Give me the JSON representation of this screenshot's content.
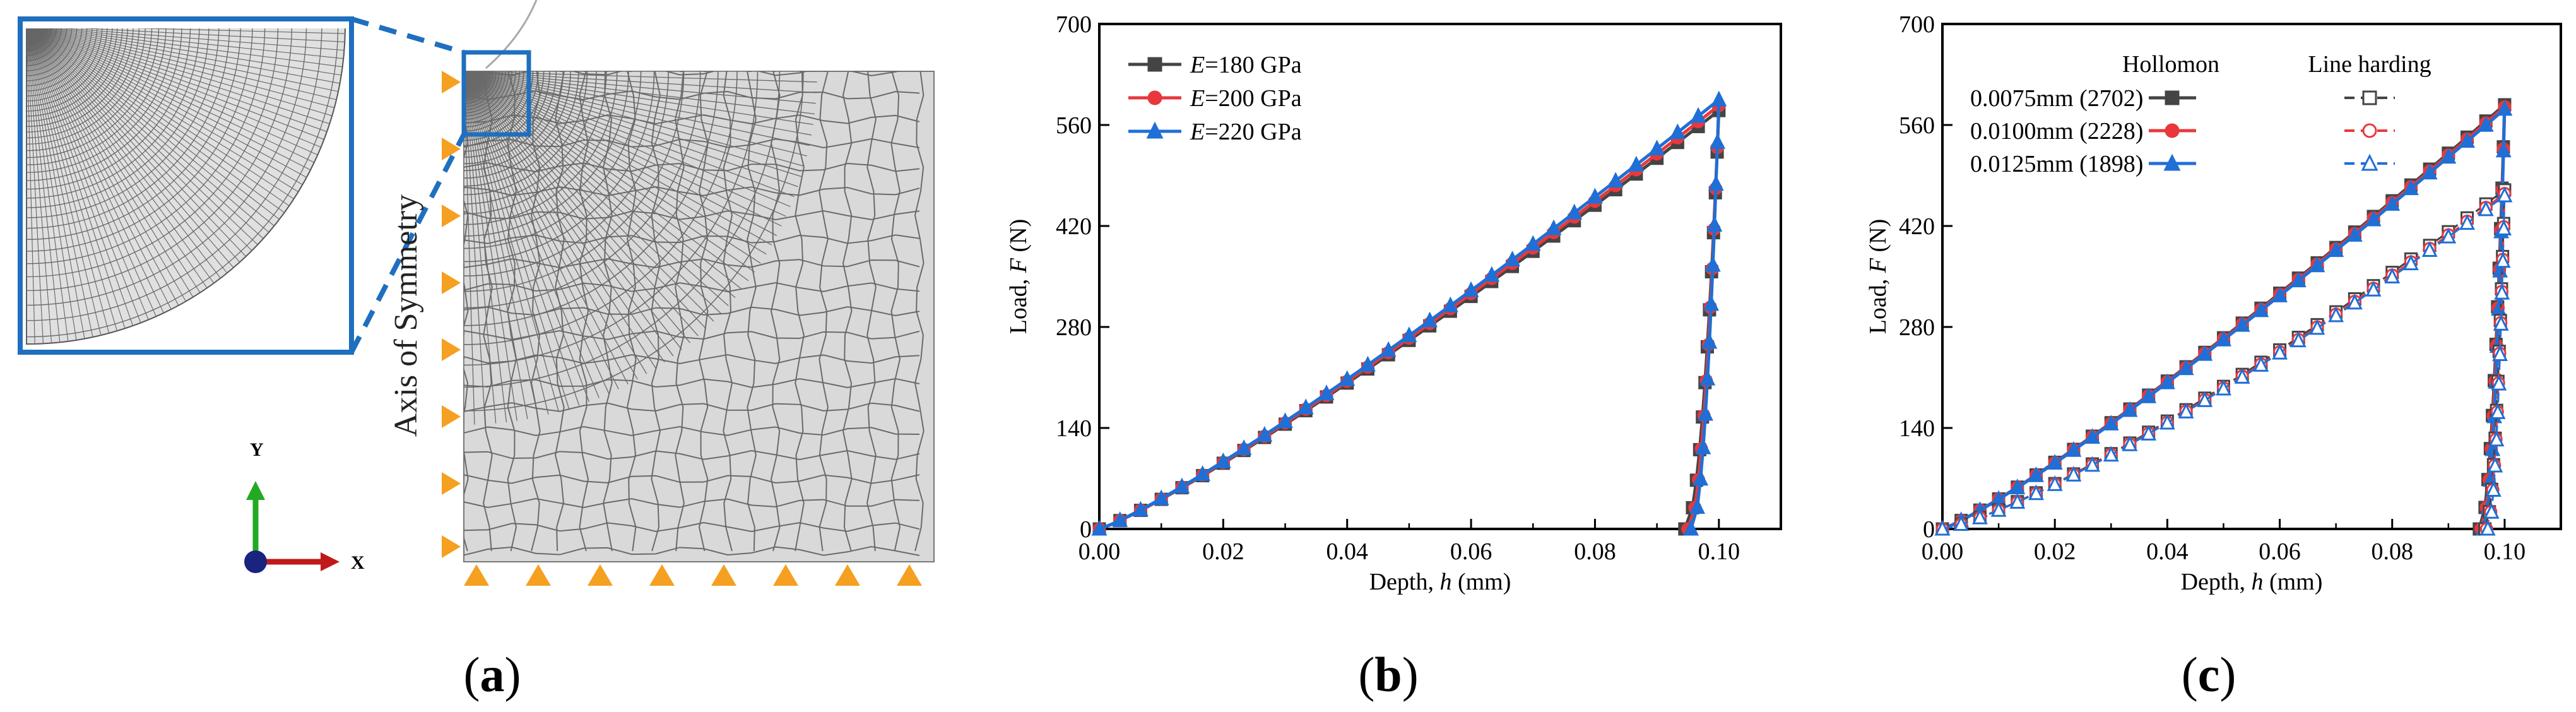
{
  "panels": {
    "a": {
      "caption_open": "(",
      "caption_letter": "a",
      "caption_close": ")",
      "axis_label": "Axis of Symmetry",
      "triad_y": "Y",
      "triad_x": "X",
      "colors": {
        "mesh_fill": "#d8d8d8",
        "mesh_line": "#555555",
        "frame": "#1f6fbf",
        "triangle": "#f5a020"
      }
    },
    "b": {
      "caption_open": "(",
      "caption_letter": "b",
      "caption_close": ")"
    },
    "c": {
      "caption_open": "(",
      "caption_letter": "c",
      "caption_close": ")",
      "legend_header_1": "Hollomon",
      "legend_header_2": "Line harding"
    }
  },
  "chart_data": [
    {
      "id": "b",
      "type": "line",
      "title": "",
      "xlabel_prefix": "Depth, ",
      "xlabel_var": "h",
      "xlabel_suffix": " (mm)",
      "ylabel_prefix": "Load, ",
      "ylabel_var": "F",
      "ylabel_suffix": " (N)",
      "xlim": [
        0,
        0.11
      ],
      "ylim": [
        0,
        700
      ],
      "xticks": [
        0.0,
        0.02,
        0.04,
        0.06,
        0.08,
        0.1
      ],
      "xtick_labels": [
        "0.00",
        "0.02",
        "0.04",
        "0.06",
        "0.08",
        "0.10"
      ],
      "yticks": [
        0,
        140,
        280,
        420,
        560,
        700
      ],
      "ytick_labels": [
        "0",
        "140",
        "280",
        "420",
        "560",
        "700"
      ],
      "legend_position": "top-left",
      "series": [
        {
          "name_var": "E",
          "name_rest": "=180 GPa",
          "color": "#444444",
          "marker": "square",
          "filled": true,
          "dash": false,
          "hmax": 0.1,
          "fmax": 580,
          "hres": 0.0945
        },
        {
          "name_var": "E",
          "name_rest": "=200 GPa",
          "color": "#e8383d",
          "marker": "circle",
          "filled": true,
          "dash": false,
          "hmax": 0.1,
          "fmax": 587,
          "hres": 0.095
        },
        {
          "name_var": "E",
          "name_rest": "=220 GPa",
          "color": "#1f6fd6",
          "marker": "triangle",
          "filled": true,
          "dash": false,
          "hmax": 0.1,
          "fmax": 595,
          "hres": 0.0955
        }
      ]
    },
    {
      "id": "c",
      "type": "line",
      "title": "",
      "xlabel_prefix": "Depth, ",
      "xlabel_var": "h",
      "xlabel_suffix": " (mm)",
      "ylabel_prefix": "Load, ",
      "ylabel_var": "F",
      "ylabel_suffix": " (N)",
      "xlim": [
        0,
        0.11
      ],
      "ylim": [
        0,
        700
      ],
      "xticks": [
        0.0,
        0.02,
        0.04,
        0.06,
        0.08,
        0.1
      ],
      "xtick_labels": [
        "0.00",
        "0.02",
        "0.04",
        "0.06",
        "0.08",
        "0.10"
      ],
      "yticks": [
        0,
        140,
        280,
        420,
        560,
        700
      ],
      "ytick_labels": [
        "0",
        "140",
        "280",
        "420",
        "560",
        "700"
      ],
      "legend_position": "top-left",
      "legend_rows": [
        "0.0075mm (2702)",
        "0.0100mm (2228)",
        "0.0125mm (1898)"
      ],
      "series": [
        {
          "name": "0.0075mm (2702) Hollomon",
          "color": "#444444",
          "marker": "square",
          "filled": true,
          "dash": false,
          "hmax": 0.1,
          "fmax": 588,
          "hres": 0.0955
        },
        {
          "name": "0.0100mm (2228) Hollomon",
          "color": "#e8383d",
          "marker": "circle",
          "filled": true,
          "dash": false,
          "hmax": 0.1,
          "fmax": 585,
          "hres": 0.0958
        },
        {
          "name": "0.0125mm (1898) Hollomon",
          "color": "#1f6fd6",
          "marker": "triangle",
          "filled": true,
          "dash": false,
          "hmax": 0.1,
          "fmax": 582,
          "hres": 0.0962
        },
        {
          "name": "0.0075mm (2702) Line harding",
          "color": "#444444",
          "marker": "square",
          "filled": false,
          "dash": true,
          "hmax": 0.1,
          "fmax": 470,
          "hres": 0.0965
        },
        {
          "name": "0.0100mm (2228) Line harding",
          "color": "#e8383d",
          "marker": "circle",
          "filled": false,
          "dash": true,
          "hmax": 0.1,
          "fmax": 465,
          "hres": 0.0968
        },
        {
          "name": "0.0125mm (1898) Line harding",
          "color": "#1f6fd6",
          "marker": "triangle",
          "filled": false,
          "dash": true,
          "hmax": 0.1,
          "fmax": 462,
          "hres": 0.097
        }
      ]
    }
  ]
}
